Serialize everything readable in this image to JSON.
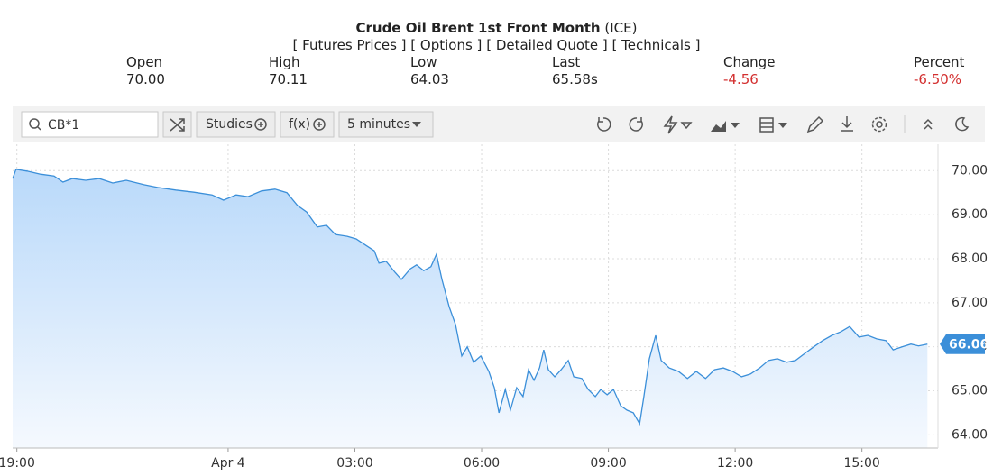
{
  "header": {
    "title": "Crude Oil Brent 1st Front Month",
    "exchange": "(ICE)",
    "links": [
      "[ Futures Prices ]",
      "[ Options ]",
      "[ Detailed Quote ]",
      "[ Technicals ]"
    ]
  },
  "quote": [
    {
      "label": "Open",
      "value": "70.00"
    },
    {
      "label": "High",
      "value": "70.11"
    },
    {
      "label": "Low",
      "value": "64.03"
    },
    {
      "label": "Last",
      "value": "65.58s"
    },
    {
      "label": "Change",
      "value": "-4.56"
    },
    {
      "label": "Percent",
      "value": "-6.50%"
    }
  ],
  "toolbar": {
    "symbol": "CB*1",
    "studies": "Studies",
    "function": "f(x)",
    "interval": "5 minutes"
  },
  "chart_data": {
    "type": "line",
    "color": "#3b8fd9",
    "grid": true,
    "xlim": [
      -5.1,
      16.8
    ],
    "ylim": [
      63.7,
      70.6
    ],
    "xticks": [
      {
        "value": -5,
        "label": "19:00"
      },
      {
        "value": 0,
        "label": "Apr 4"
      },
      {
        "value": 3,
        "label": "03:00"
      },
      {
        "value": 6,
        "label": "06:00"
      },
      {
        "value": 9,
        "label": "09:00"
      },
      {
        "value": 12,
        "label": "12:00"
      },
      {
        "value": 15,
        "label": "15:00"
      }
    ],
    "yticks": [
      {
        "value": 64,
        "label": "64.00"
      },
      {
        "value": 65,
        "label": "65.00"
      },
      {
        "value": 66,
        "label": "66.00"
      },
      {
        "value": 67,
        "label": "67.00"
      },
      {
        "value": 68,
        "label": "68.00"
      },
      {
        "value": 69,
        "label": "69.00"
      },
      {
        "value": 70,
        "label": "70.00"
      }
    ],
    "x": [
      -5.1,
      -5.02,
      -4.76,
      -4.44,
      -4.12,
      -3.91,
      -3.69,
      -3.37,
      -3.05,
      -2.73,
      -2.41,
      -1.99,
      -1.67,
      -1.24,
      -0.81,
      -0.38,
      -0.11,
      0.19,
      0.47,
      0.79,
      1.11,
      1.39,
      1.64,
      1.86,
      2.11,
      2.33,
      2.54,
      2.82,
      3.03,
      3.25,
      3.46,
      3.57,
      3.74,
      3.95,
      4.1,
      4.31,
      4.46,
      4.63,
      4.8,
      4.93,
      5.06,
      5.23,
      5.38,
      5.53,
      5.66,
      5.81,
      5.98,
      6.17,
      6.3,
      6.41,
      6.56,
      6.68,
      6.83,
      6.98,
      7.11,
      7.24,
      7.37,
      7.47,
      7.58,
      7.73,
      7.88,
      8.05,
      8.18,
      8.37,
      8.52,
      8.69,
      8.82,
      8.97,
      9.12,
      9.29,
      9.44,
      9.59,
      9.74,
      9.84,
      9.97,
      10.12,
      10.25,
      10.44,
      10.66,
      10.87,
      11.08,
      11.3,
      11.51,
      11.72,
      11.94,
      12.15,
      12.36,
      12.58,
      12.79,
      13.0,
      13.22,
      13.43,
      13.65,
      13.86,
      14.07,
      14.29,
      14.5,
      14.71,
      14.93,
      15.14,
      15.35,
      15.57,
      15.74,
      15.95,
      16.16,
      16.34,
      16.55
    ],
    "values": [
      69.82,
      70.03,
      69.99,
      69.92,
      69.88,
      69.74,
      69.82,
      69.78,
      69.82,
      69.72,
      69.78,
      69.68,
      69.62,
      69.56,
      69.51,
      69.45,
      69.33,
      69.45,
      69.41,
      69.54,
      69.58,
      69.5,
      69.21,
      69.06,
      68.72,
      68.76,
      68.55,
      68.51,
      68.45,
      68.31,
      68.18,
      67.9,
      67.94,
      67.69,
      67.53,
      67.77,
      67.86,
      67.73,
      67.82,
      68.1,
      67.53,
      66.91,
      66.51,
      65.79,
      66.0,
      65.65,
      65.79,
      65.44,
      65.07,
      64.5,
      65.03,
      64.56,
      65.07,
      64.87,
      65.48,
      65.24,
      65.52,
      65.93,
      65.48,
      65.32,
      65.48,
      65.69,
      65.32,
      65.28,
      65.03,
      64.87,
      65.03,
      64.91,
      65.03,
      64.66,
      64.56,
      64.5,
      64.25,
      64.87,
      65.73,
      66.26,
      65.69,
      65.52,
      65.44,
      65.28,
      65.44,
      65.28,
      65.48,
      65.52,
      65.44,
      65.32,
      65.38,
      65.52,
      65.69,
      65.73,
      65.65,
      65.69,
      65.85,
      66.0,
      66.14,
      66.26,
      66.34,
      66.46,
      66.22,
      66.26,
      66.18,
      66.14,
      65.93,
      66.0,
      66.06,
      66.02,
      66.06
    ]
  }
}
